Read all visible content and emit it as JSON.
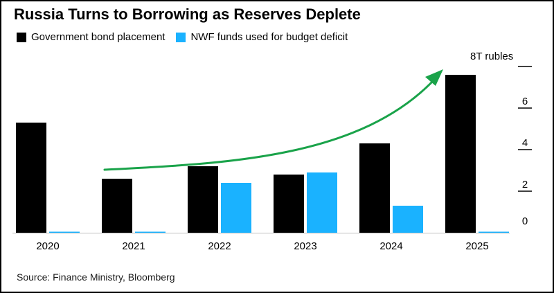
{
  "chart_data": {
    "type": "bar",
    "title": "Russia Turns to Borrowing as Reserves Deplete",
    "categories": [
      "2020",
      "2021",
      "2022",
      "2023",
      "2024",
      "2025"
    ],
    "series": [
      {
        "name": "Government bond placement",
        "color": "#000000",
        "values": [
          5.3,
          2.6,
          3.2,
          2.8,
          4.3,
          7.6
        ]
      },
      {
        "name": "NWF funds used for budget deficit",
        "color": "#1ab2ff",
        "values": [
          0.05,
          0.03,
          2.4,
          2.9,
          1.3,
          0.03
        ]
      }
    ],
    "unit_label": "8T rubles",
    "y_ticks": [
      "2",
      "4",
      "6"
    ],
    "y_zero_label": "0",
    "ylim": [
      0,
      8
    ],
    "legend_position": "top-left",
    "annotation": "green upward trend arrow from 2021 to 2025",
    "annotation_color": "#1aa34a",
    "source": "Source: Finance Ministry, Bloomberg"
  }
}
